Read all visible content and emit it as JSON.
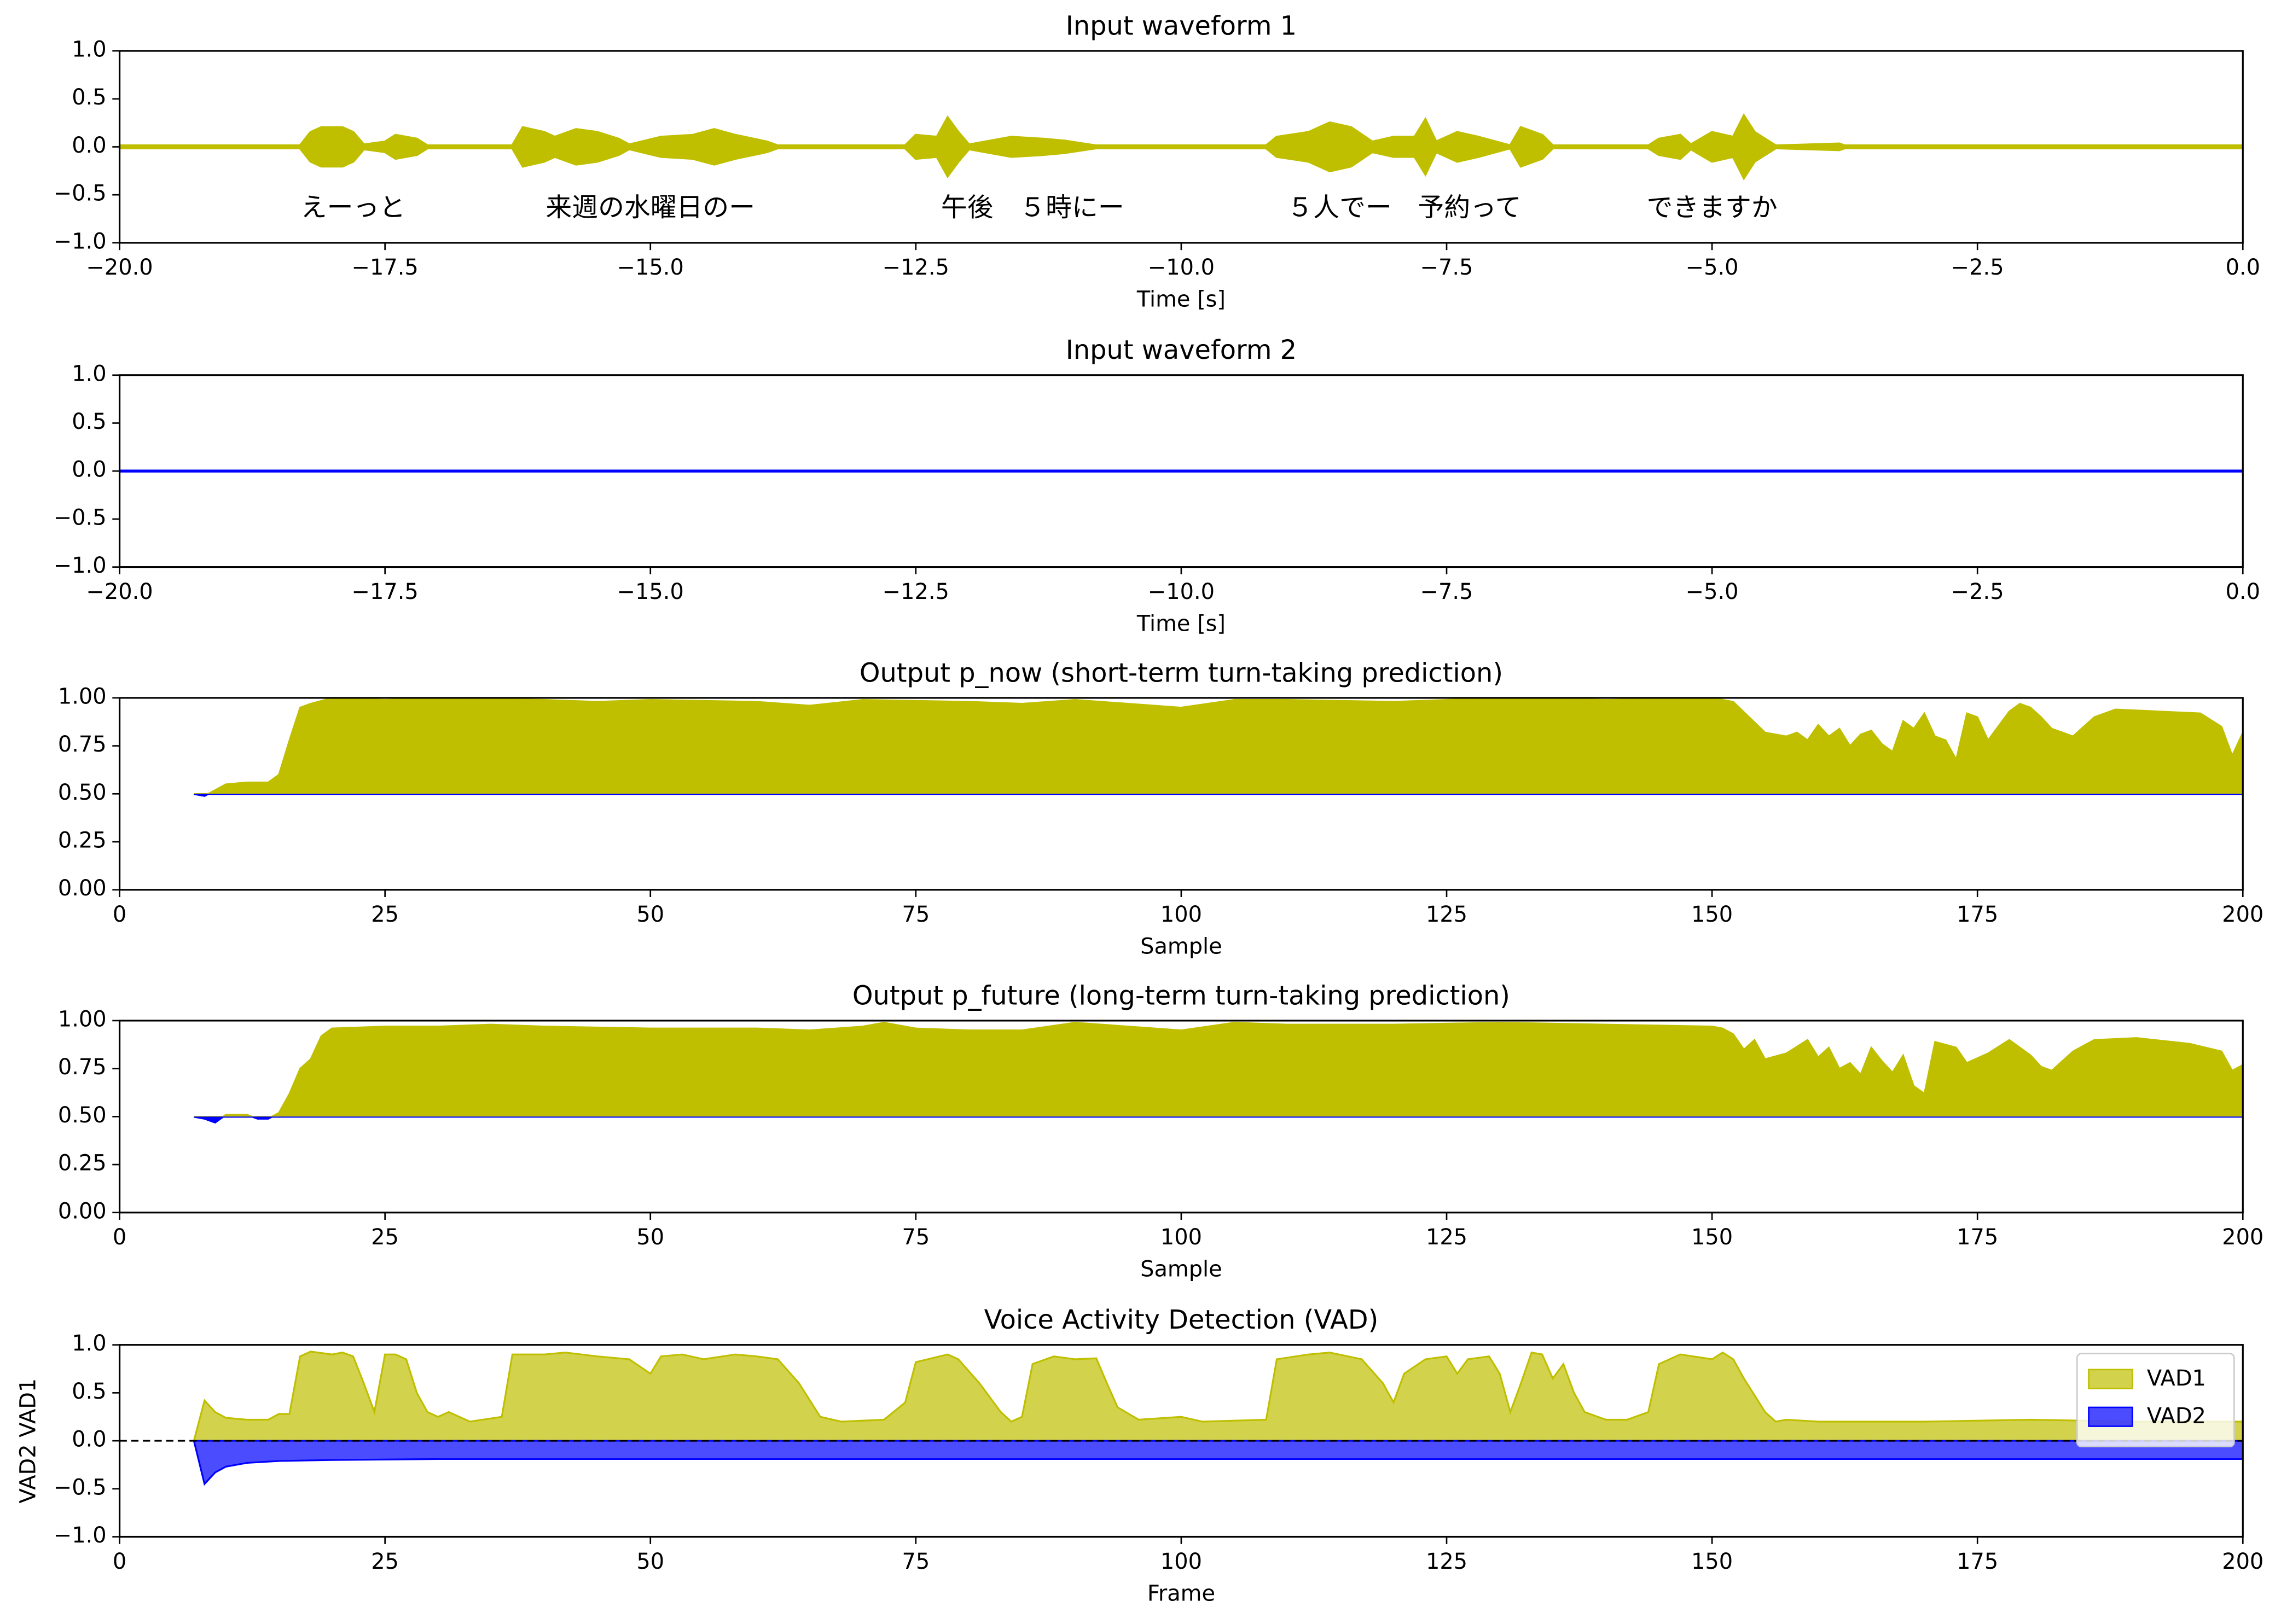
{
  "chart_data": [
    {
      "type": "waveform",
      "title": "Input waveform 1",
      "xlabel": "Time [s]",
      "color": "#bfbf00",
      "x": [
        -20,
        -18.3,
        -18.2,
        -18.1,
        -17.9,
        -17.8,
        -17.7,
        -17.5,
        -17.4,
        -17.2,
        -17.1,
        -16.3,
        -16.2,
        -16.0,
        -15.9,
        -15.7,
        -15.5,
        -15.3,
        -15.2,
        -14.9,
        -14.6,
        -14.4,
        -14.2,
        -13.9,
        -13.8,
        -12.6,
        -12.5,
        -12.3,
        -12.2,
        -12.1,
        -12.0,
        -11.6,
        -11.3,
        -11.1,
        -10.8,
        -9.2,
        -9.1,
        -8.8,
        -8.6,
        -8.4,
        -8.2,
        -8.0,
        -7.8,
        -7.7,
        -7.6,
        -7.4,
        -7.2,
        -6.9,
        -6.8,
        -6.6,
        -6.5,
        -5.6,
        -5.5,
        -5.3,
        -5.2,
        -5.0,
        -4.8,
        -4.7,
        -4.6,
        -4.4,
        -3.8,
        -3.75,
        0
      ],
      "values": [
        0.01,
        0.01,
        0.15,
        0.2,
        0.2,
        0.15,
        0.02,
        0.05,
        0.12,
        0.08,
        0.01,
        0.01,
        0.2,
        0.15,
        0.1,
        0.18,
        0.15,
        0.08,
        0.02,
        0.1,
        0.12,
        0.18,
        0.12,
        0.05,
        0.01,
        0.01,
        0.12,
        0.1,
        0.3,
        0.15,
        0.02,
        0.1,
        0.08,
        0.06,
        0.01,
        0.01,
        0.1,
        0.15,
        0.25,
        0.2,
        0.05,
        0.1,
        0.1,
        0.28,
        0.05,
        0.15,
        0.1,
        0.01,
        0.2,
        0.12,
        0.01,
        0.01,
        0.08,
        0.12,
        0.02,
        0.15,
        0.1,
        0.32,
        0.15,
        0.01,
        0.03,
        0.01,
        0.01
      ],
      "annotations": [
        {
          "text": "えーっと",
          "x": -17.8,
          "y": -0.65
        },
        {
          "text": "来週の水曜日のー",
          "x": -15.0,
          "y": -0.65
        },
        {
          "text": "午後　５時にー",
          "x": -11.4,
          "y": -0.65
        },
        {
          "text": "５人でー　予約って",
          "x": -7.9,
          "y": -0.65
        },
        {
          "text": "できますか",
          "x": -5.0,
          "y": -0.65
        }
      ],
      "xlim": [
        -20,
        0
      ],
      "ylim": [
        -1,
        1
      ],
      "xticks": [
        {
          "value": -20,
          "label": "−20.0"
        },
        {
          "value": -17.5,
          "label": "−17.5"
        },
        {
          "value": -15,
          "label": "−15.0"
        },
        {
          "value": -12.5,
          "label": "−12.5"
        },
        {
          "value": -10,
          "label": "−10.0"
        },
        {
          "value": -7.5,
          "label": "−7.5"
        },
        {
          "value": -5,
          "label": "−5.0"
        },
        {
          "value": -2.5,
          "label": "−2.5"
        },
        {
          "value": 0,
          "label": "0.0"
        }
      ],
      "yticks": [
        {
          "value": -1,
          "label": "−1.0"
        },
        {
          "value": -0.5,
          "label": "−0.5"
        },
        {
          "value": 0,
          "label": "0.0"
        },
        0.5,
        {
          "value": 1,
          "label": "1.0"
        }
      ]
    },
    {
      "type": "line",
      "title": "Input waveform 2",
      "xlabel": "Time [s]",
      "color": "#0000ff",
      "x": [
        -20,
        0
      ],
      "values": [
        0,
        0
      ],
      "xlim": [
        -20,
        0
      ],
      "ylim": [
        -1,
        1
      ],
      "xticks": [
        {
          "value": -20,
          "label": "−20.0"
        },
        {
          "value": -17.5,
          "label": "−17.5"
        },
        {
          "value": -15,
          "label": "−15.0"
        },
        {
          "value": -12.5,
          "label": "−12.5"
        },
        {
          "value": -10,
          "label": "−10.0"
        },
        {
          "value": -7.5,
          "label": "−7.5"
        },
        {
          "value": -5,
          "label": "−5.0"
        },
        {
          "value": -2.5,
          "label": "−2.5"
        },
        {
          "value": 0,
          "label": "0.0"
        }
      ],
      "yticks": [
        {
          "value": -1,
          "label": "−1.0"
        },
        {
          "value": -0.5,
          "label": "−0.5"
        },
        {
          "value": 0,
          "label": "0.0"
        },
        0.5,
        {
          "value": 1,
          "label": "1.0"
        }
      ]
    },
    {
      "type": "area",
      "title": "Output p_now (short-term turn-taking prediction)",
      "xlabel": "Sample",
      "baseline": 0.5,
      "series": [
        {
          "color": "#bfbf00",
          "below_color": "#0000ff",
          "alpha": 1,
          "x": [
            7,
            8,
            9,
            10,
            12,
            14,
            15,
            16,
            17,
            18,
            20,
            25,
            30,
            40,
            45,
            50,
            60,
            65,
            70,
            80,
            85,
            90,
            95,
            100,
            105,
            110,
            120,
            130,
            140,
            150,
            152,
            155,
            157,
            158,
            159,
            160,
            161,
            162,
            163,
            164,
            165,
            166,
            167,
            168,
            169,
            170,
            171,
            172,
            173,
            174,
            175,
            176,
            178,
            179,
            180,
            181,
            182,
            184,
            186,
            188,
            192,
            196,
            198,
            199,
            200
          ],
          "values": [
            0.5,
            0.49,
            0.52,
            0.55,
            0.56,
            0.56,
            0.6,
            0.78,
            0.95,
            0.97,
            1.0,
            0.99,
            1.0,
            0.99,
            0.98,
            0.99,
            0.98,
            0.96,
            0.99,
            0.98,
            0.97,
            0.99,
            0.97,
            0.95,
            0.99,
            0.99,
            0.98,
            1.0,
            0.99,
            1.0,
            0.98,
            0.82,
            0.8,
            0.82,
            0.78,
            0.86,
            0.8,
            0.84,
            0.75,
            0.81,
            0.83,
            0.76,
            0.72,
            0.88,
            0.84,
            0.92,
            0.8,
            0.78,
            0.68,
            0.92,
            0.9,
            0.78,
            0.93,
            0.97,
            0.95,
            0.9,
            0.84,
            0.8,
            0.9,
            0.94,
            0.93,
            0.92,
            0.85,
            0.7,
            0.82
          ]
        }
      ],
      "xlim": [
        0,
        200
      ],
      "ylim": [
        0,
        1
      ],
      "xticks": [
        0,
        25,
        50,
        75,
        100,
        125,
        150,
        175,
        200
      ],
      "yticks": [
        {
          "value": 0,
          "label": "0.00"
        },
        0.25,
        {
          "value": 0.5,
          "label": "0.50"
        },
        0.75,
        {
          "value": 1,
          "label": "1.00"
        }
      ]
    },
    {
      "type": "area",
      "title": "Output p_future (long-term turn-taking prediction)",
      "xlabel": "Sample",
      "baseline": 0.5,
      "series": [
        {
          "color": "#bfbf00",
          "below_color": "#0000ff",
          "alpha": 1,
          "x": [
            7,
            8,
            9,
            10,
            12,
            13,
            14,
            15,
            16,
            17,
            18,
            19,
            20,
            25,
            30,
            35,
            40,
            50,
            60,
            65,
            70,
            72,
            75,
            80,
            85,
            90,
            100,
            105,
            110,
            120,
            130,
            140,
            150,
            151,
            152,
            153,
            154,
            155,
            157,
            159,
            160,
            161,
            162,
            163,
            164,
            165,
            166,
            167,
            168,
            169,
            170,
            171,
            173,
            174,
            176,
            178,
            180,
            181,
            182,
            184,
            186,
            190,
            195,
            198,
            199,
            200
          ],
          "values": [
            0.5,
            0.49,
            0.47,
            0.51,
            0.51,
            0.49,
            0.49,
            0.52,
            0.62,
            0.75,
            0.8,
            0.92,
            0.96,
            0.97,
            0.97,
            0.98,
            0.97,
            0.96,
            0.96,
            0.95,
            0.97,
            0.99,
            0.96,
            0.95,
            0.95,
            0.99,
            0.95,
            0.99,
            0.98,
            0.98,
            0.99,
            0.98,
            0.97,
            0.96,
            0.93,
            0.85,
            0.9,
            0.8,
            0.83,
            0.9,
            0.81,
            0.86,
            0.75,
            0.78,
            0.72,
            0.86,
            0.79,
            0.73,
            0.82,
            0.66,
            0.62,
            0.89,
            0.86,
            0.78,
            0.83,
            0.9,
            0.82,
            0.76,
            0.74,
            0.84,
            0.9,
            0.91,
            0.88,
            0.84,
            0.74,
            0.77
          ]
        }
      ],
      "xlim": [
        0,
        200
      ],
      "ylim": [
        0,
        1
      ],
      "xticks": [
        0,
        25,
        50,
        75,
        100,
        125,
        150,
        175,
        200
      ],
      "yticks": [
        {
          "value": 0,
          "label": "0.00"
        },
        0.25,
        {
          "value": 0.5,
          "label": "0.50"
        },
        0.75,
        {
          "value": 1,
          "label": "1.00"
        }
      ]
    },
    {
      "type": "area",
      "title": "Voice Activity Detection (VAD)",
      "xlabel": "Frame",
      "ylabel": "VAD2  VAD1",
      "baseline": 0,
      "hline": 0,
      "legend": "upper right",
      "series": [
        {
          "name": "VAD1",
          "color": "#bfbf00",
          "alpha": 0.7,
          "x": [
            7,
            8,
            9,
            10,
            12,
            14,
            15,
            16,
            17,
            18,
            20,
            21,
            22,
            23,
            24,
            25,
            26,
            27,
            28,
            29,
            30,
            31,
            33,
            36,
            37,
            40,
            42,
            45,
            48,
            50,
            51,
            53,
            55,
            58,
            60,
            62,
            64,
            66,
            68,
            72,
            74,
            75,
            78,
            79,
            81,
            83,
            84,
            85,
            86,
            88,
            90,
            92,
            93,
            94,
            96,
            100,
            102,
            108,
            109,
            112,
            114,
            117,
            119,
            120,
            121,
            123,
            125,
            126,
            127,
            129,
            130,
            131,
            132,
            133,
            134,
            135,
            136,
            137,
            138,
            140,
            142,
            144,
            145,
            147,
            150,
            151,
            152,
            153,
            155,
            156,
            157,
            160,
            170,
            180,
            190,
            200
          ],
          "values": [
            0,
            0.42,
            0.3,
            0.24,
            0.22,
            0.22,
            0.28,
            0.28,
            0.88,
            0.93,
            0.9,
            0.92,
            0.88,
            0.6,
            0.3,
            0.9,
            0.9,
            0.85,
            0.5,
            0.3,
            0.25,
            0.3,
            0.2,
            0.25,
            0.9,
            0.9,
            0.92,
            0.88,
            0.85,
            0.7,
            0.88,
            0.9,
            0.85,
            0.9,
            0.88,
            0.85,
            0.6,
            0.25,
            0.2,
            0.22,
            0.4,
            0.82,
            0.9,
            0.85,
            0.6,
            0.3,
            0.2,
            0.25,
            0.8,
            0.88,
            0.85,
            0.86,
            0.6,
            0.35,
            0.22,
            0.25,
            0.2,
            0.22,
            0.85,
            0.9,
            0.92,
            0.85,
            0.6,
            0.4,
            0.7,
            0.85,
            0.88,
            0.7,
            0.85,
            0.88,
            0.7,
            0.3,
            0.6,
            0.92,
            0.9,
            0.65,
            0.8,
            0.5,
            0.3,
            0.22,
            0.22,
            0.3,
            0.8,
            0.9,
            0.85,
            0.92,
            0.85,
            0.65,
            0.3,
            0.2,
            0.22,
            0.2,
            0.2,
            0.22,
            0.2,
            0.2
          ]
        },
        {
          "name": "VAD2",
          "color": "#0000ff",
          "alpha": 0.7,
          "x": [
            7,
            8,
            9,
            10,
            12,
            15,
            20,
            30,
            50,
            200
          ],
          "values": [
            0,
            -0.45,
            -0.33,
            -0.27,
            -0.23,
            -0.21,
            -0.2,
            -0.19,
            -0.19,
            -0.19
          ]
        }
      ],
      "xlim": [
        0,
        200
      ],
      "ylim": [
        -1,
        1
      ],
      "xticks": [
        0,
        25,
        50,
        75,
        100,
        125,
        150,
        175,
        200
      ],
      "yticks": [
        {
          "value": -1,
          "label": "−1.0"
        },
        {
          "value": -0.5,
          "label": "−0.5"
        },
        {
          "value": 0,
          "label": "0.0"
        },
        0.5,
        {
          "value": 1,
          "label": "1.0"
        }
      ]
    }
  ]
}
